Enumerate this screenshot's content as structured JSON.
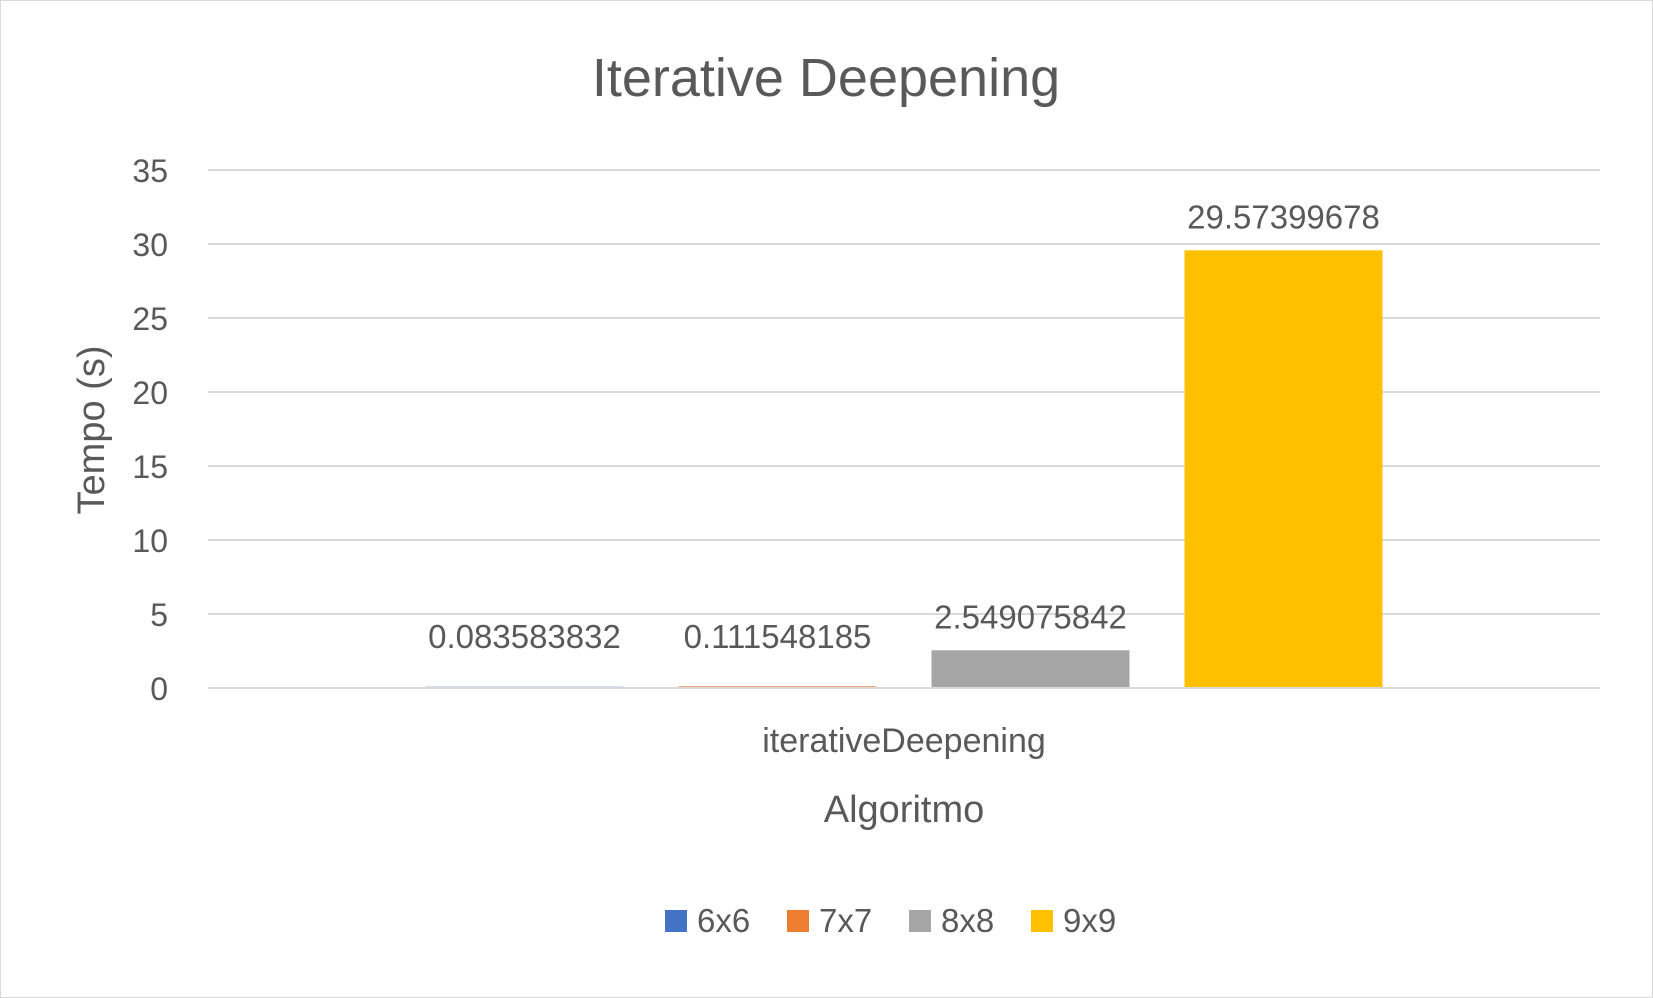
{
  "chart_data": {
    "type": "bar",
    "title": "Iterative Deepening",
    "xlabel": "Algoritmo",
    "ylabel": "Tempo (s)",
    "categories": [
      "iterativeDeepening"
    ],
    "ylim": [
      0,
      35
    ],
    "yticks": [
      0,
      5,
      10,
      15,
      20,
      25,
      30,
      35
    ],
    "ytick_labels": [
      "0",
      "5",
      "10",
      "15",
      "20",
      "25",
      "30",
      "35"
    ],
    "grid": true,
    "legend_position": "bottom",
    "series": [
      {
        "name": "6x6",
        "values": [
          0.083583832
        ],
        "label": "0.083583832",
        "color": "#4472C4"
      },
      {
        "name": "7x7",
        "values": [
          0.111548185
        ],
        "label": "0.111548185",
        "color": "#ED7D31"
      },
      {
        "name": "8x8",
        "values": [
          2.549075842
        ],
        "label": "2.549075842",
        "color": "#A5A5A5"
      },
      {
        "name": "9x9",
        "values": [
          29.57399678
        ],
        "label": "29.57399678",
        "color": "#FFC000"
      }
    ]
  }
}
